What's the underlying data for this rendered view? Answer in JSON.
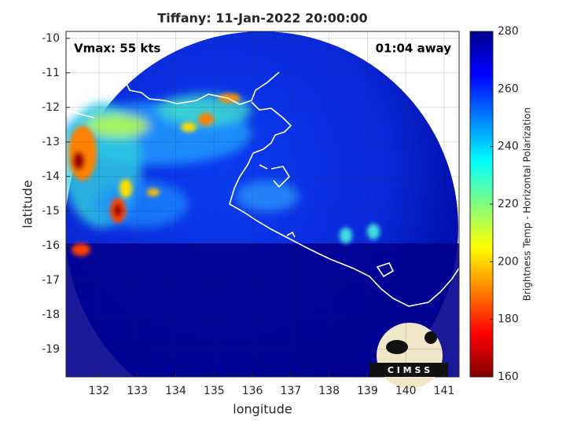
{
  "chart_data": {
    "type": "map",
    "title": "Tiffany: 11-Jan-2022 20:00:00",
    "annotations": [
      "Vmax: 55 kts",
      "01:04 away"
    ],
    "xlabel": "longitude",
    "ylabel": "latitude",
    "xlim": [
      131.14,
      141.39
    ],
    "xticks": [
      132,
      133,
      134,
      135,
      136,
      137,
      138,
      139,
      140,
      141
    ],
    "ylim": [
      -19.8,
      -9.8
    ],
    "yticks": [
      -19,
      -18,
      -17,
      -16,
      -15,
      -14,
      -13,
      -12,
      -11,
      -10
    ],
    "grid": true,
    "colorbar": {
      "label": "Brightness Temp - Horizontal Polarization",
      "lim": [
        160,
        280
      ],
      "ticks": [
        160,
        180,
        200,
        220,
        240,
        260,
        280
      ],
      "colormap": "jet"
    },
    "logo": "C I M S S"
  }
}
